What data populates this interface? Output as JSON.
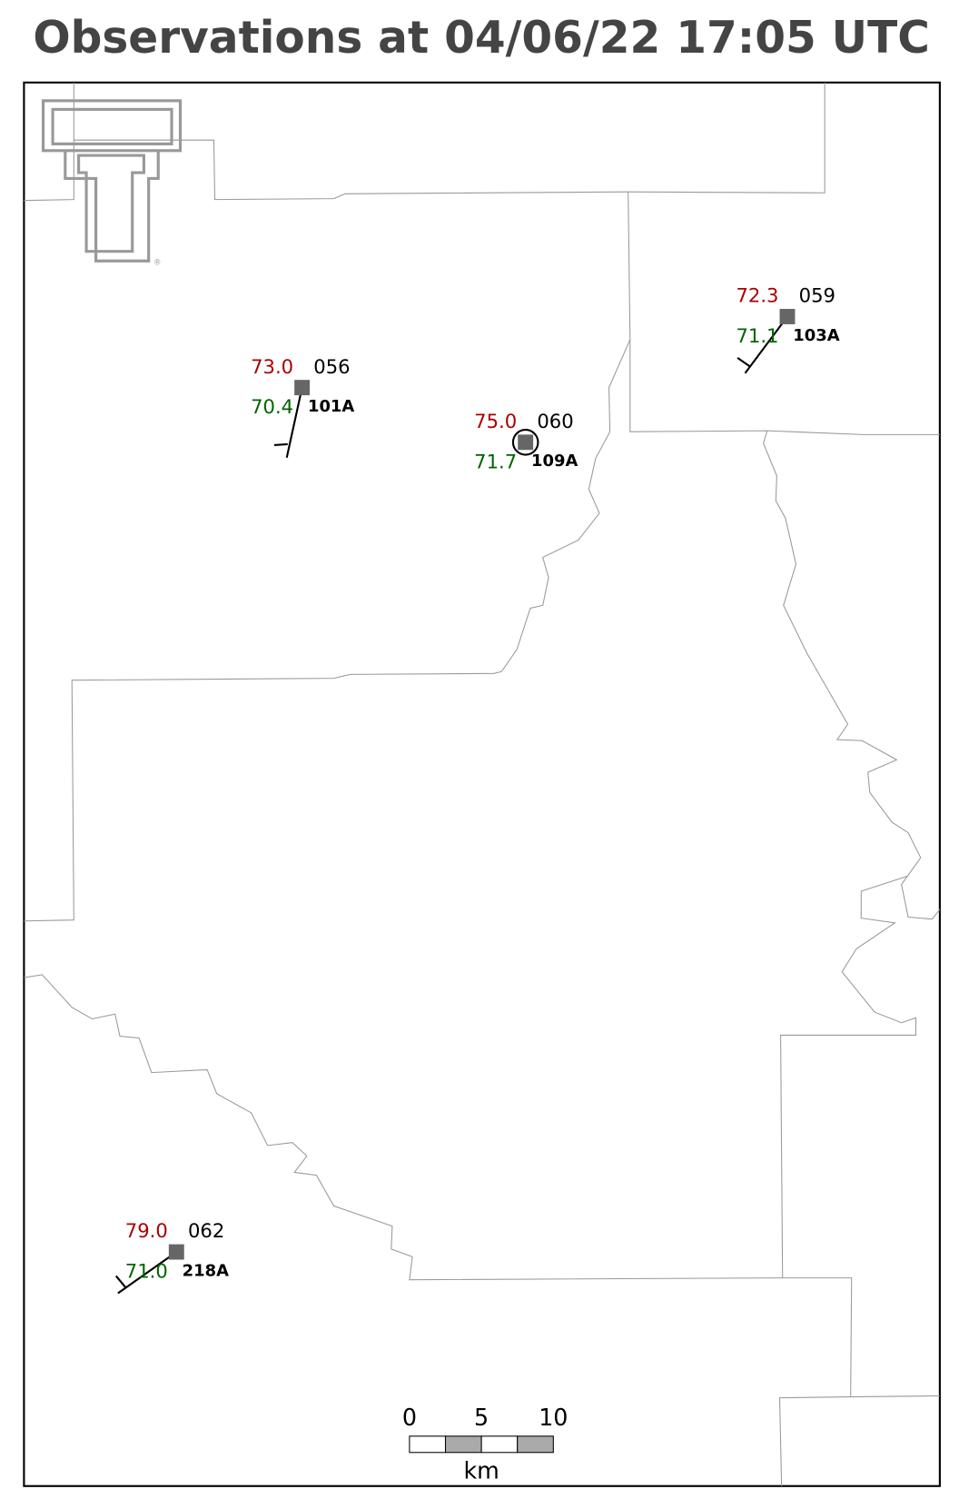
{
  "title": "Observations at 04/06/22 17:05 UTC",
  "stations": [
    {
      "temperature": "73.0",
      "pressure": "056",
      "dewpoint": "70.4",
      "id": "101A"
    },
    {
      "temperature": "75.0",
      "pressure": "060",
      "dewpoint": "71.7",
      "id": "109A"
    },
    {
      "temperature": "72.3",
      "pressure": "059",
      "dewpoint": "71.1",
      "id": "103A"
    },
    {
      "temperature": "79.0",
      "pressure": "062",
      "dewpoint": "71.0",
      "id": "218A"
    }
  ],
  "scale_bar": {
    "ticks": [
      "0",
      "5",
      "10"
    ],
    "unit": "km"
  }
}
